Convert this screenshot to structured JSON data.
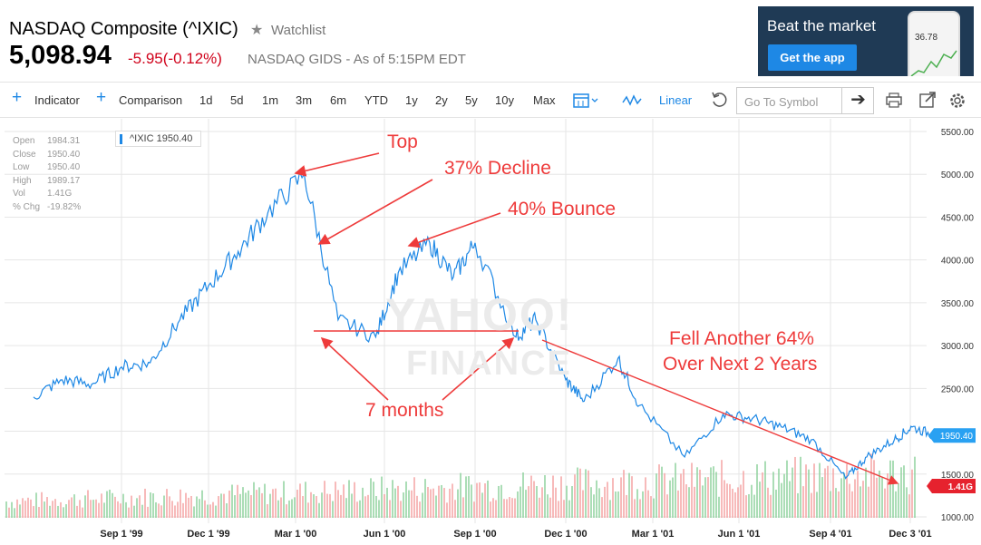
{
  "header": {
    "title": "NASDAQ Composite (^IXIC)",
    "watchlist": "Watchlist",
    "price": "5,098.94",
    "change": "-5.95(-0.12%)",
    "exchange": "NASDAQ GIDS - As of 5:15PM EDT"
  },
  "ad": {
    "title": "Beat the market",
    "button": "Get the app",
    "phone_value": "36.78"
  },
  "toolbar": {
    "indicator": "Indicator",
    "comparison": "Comparison",
    "ranges": [
      "1d",
      "5d",
      "1m",
      "3m",
      "6m",
      "YTD",
      "1y",
      "2y",
      "5y",
      "10y",
      "Max"
    ],
    "scale": "Linear",
    "goto_placeholder": "Go To Symbol"
  },
  "ohlc": {
    "labels": [
      "Open",
      "Close",
      "Low",
      "High",
      "Vol",
      "% Chg"
    ],
    "values": [
      "1984.31",
      "1950.40",
      "1950.40",
      "1989.17",
      "1.41G",
      "-19.82%"
    ]
  },
  "legend": "^IXIC 1950.40",
  "watermark": [
    "YAHOO!",
    "FINANCE"
  ],
  "annotations": {
    "top": "Top",
    "decline": "37% Decline",
    "bounce": "40% Bounce",
    "months": "7 months",
    "fell_line1": "Fell Another 64%",
    "fell_line2": "Over Next 2 Years"
  },
  "colors": {
    "line": "#1e88e5",
    "annotation": "#ee3b3b",
    "vol_up": "#8fd19e",
    "vol_down": "#f4a3a3",
    "price_flag": "#29a1f2",
    "vol_flag": "#e6222e"
  },
  "chart_data": {
    "type": "line",
    "x_labels": [
      "Sep 1 '99",
      "Dec 1 '99",
      "Mar 1 '00",
      "Jun 1 '00",
      "Sep 1 '00",
      "Dec 1 '00",
      "Mar 1 '01",
      "Jun 1 '01",
      "Sep 4 '01",
      "Dec 3 '01"
    ],
    "y_ticks": [
      5500,
      5000,
      4500,
      4000,
      3500,
      3000,
      2500,
      2000,
      1500,
      1000
    ],
    "y_tick_labels": [
      "5500.00",
      "5000.00",
      "4500.00",
      "4000.00",
      "3500.00",
      "3000.00",
      "2500.00",
      "2000.00",
      "1500.00",
      "1000.00"
    ],
    "ylim": [
      1000,
      5500
    ],
    "series": [
      {
        "name": "^IXIC",
        "x": [
          "1999-06-01",
          "1999-07-01",
          "1999-08-01",
          "1999-09-01",
          "1999-10-01",
          "1999-11-01",
          "1999-12-01",
          "2000-01-01",
          "2000-02-01",
          "2000-03-10",
          "2000-04-14",
          "2000-05-23",
          "2000-06-15",
          "2000-07-17",
          "2000-08-10",
          "2000-09-01",
          "2000-10-12",
          "2000-11-01",
          "2000-12-01",
          "2000-12-20",
          "2001-01-24",
          "2001-02-15",
          "2001-04-04",
          "2001-05-15",
          "2001-06-15",
          "2001-07-15",
          "2001-08-15",
          "2001-09-21",
          "2001-10-15",
          "2001-11-15",
          "2001-12-05",
          "2001-12-31"
        ],
        "values": [
          2400,
          2600,
          2550,
          2750,
          2800,
          3300,
          3700,
          4100,
          4550,
          5000,
          3300,
          3100,
          3850,
          4200,
          3800,
          4200,
          3100,
          3300,
          2600,
          2350,
          2850,
          2300,
          1700,
          2200,
          2150,
          2050,
          1900,
          1450,
          1700,
          1900,
          2050,
          1950
        ]
      }
    ],
    "current_price_label": "1950.40",
    "current_volume_label": "1.41G"
  }
}
